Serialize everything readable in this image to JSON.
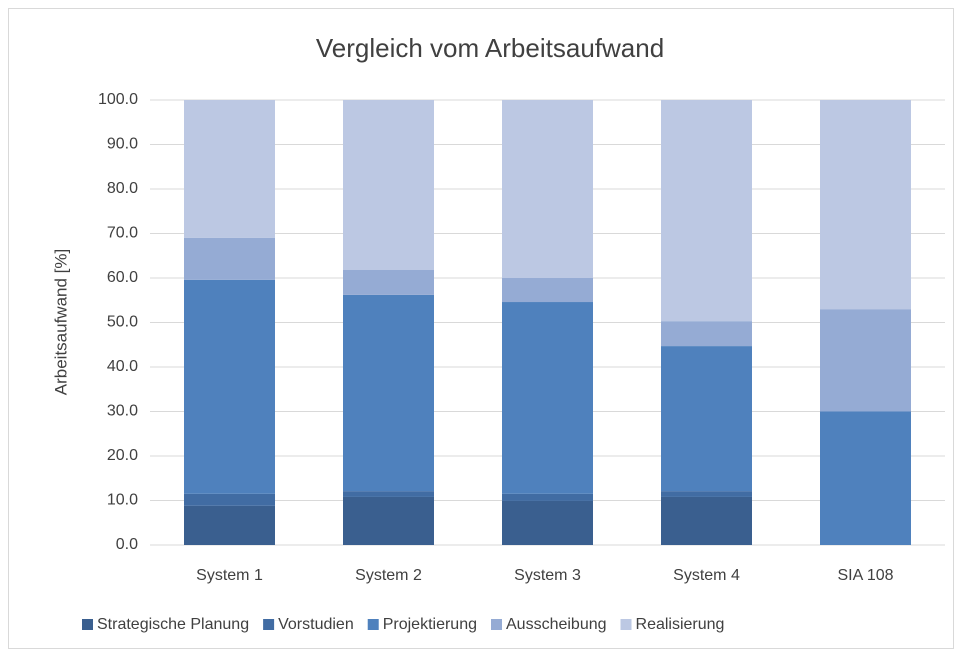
{
  "chart_data": {
    "type": "stacked_bar",
    "title": "Vergleich vom Arbeitsaufwand",
    "y_label": "Arbeitsaufwand [%]",
    "categories": [
      "System 1",
      "System 2",
      "System 3",
      "System 4",
      "SIA 108"
    ],
    "series": [
      {
        "name": "Strategische Planung",
        "color": "#3a5f8f",
        "values": [
          8.8,
          10.8,
          9.9,
          10.8,
          0
        ]
      },
      {
        "name": "Vorstudien",
        "color": "#416ca3",
        "values": [
          2.7,
          1.3,
          1.6,
          1.3,
          0
        ]
      },
      {
        "name": "Projektierung",
        "color": "#4f81bd",
        "values": [
          48.1,
          44.1,
          43.1,
          32.6,
          30
        ]
      },
      {
        "name": "Ausscheibung",
        "color": "#95abd4",
        "values": [
          9.4,
          5.6,
          5.4,
          5.6,
          23
        ]
      },
      {
        "name": "Realisierung",
        "color": "#bcc8e3",
        "values": [
          31.0,
          38.2,
          40.0,
          49.7,
          47
        ]
      }
    ],
    "ylim": [
      0,
      100
    ],
    "yticks": [
      {
        "value": 0,
        "label": "0.0"
      },
      {
        "value": 10,
        "label": "10.0"
      },
      {
        "value": 20,
        "label": "20.0"
      },
      {
        "value": 30,
        "label": "30.0"
      },
      {
        "value": 40,
        "label": "40.0"
      },
      {
        "value": 50,
        "label": "50.0"
      },
      {
        "value": 60,
        "label": "60.0"
      },
      {
        "value": 70,
        "label": "70.0"
      },
      {
        "value": 80,
        "label": "80.0"
      },
      {
        "value": 90,
        "label": "90.0"
      },
      {
        "value": 100,
        "label": "100.0"
      }
    ],
    "grid": true,
    "legend": "bottom"
  }
}
